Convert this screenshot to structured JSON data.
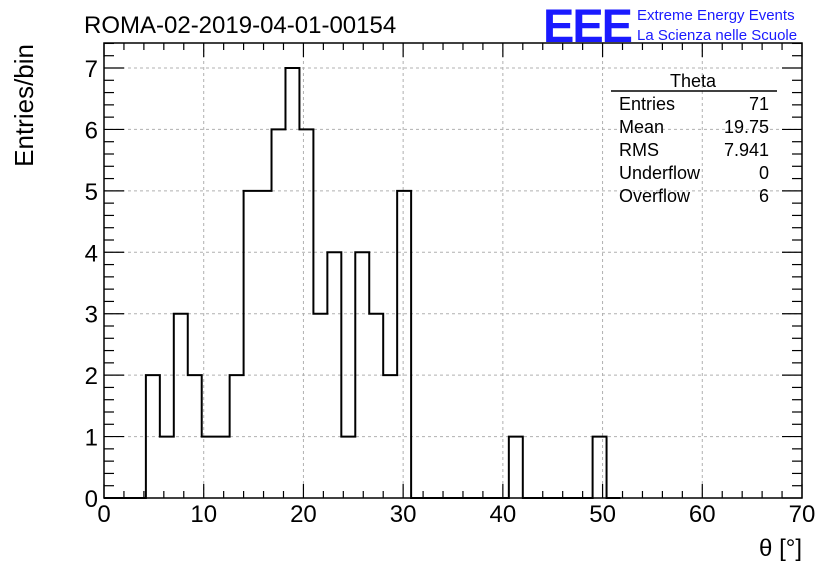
{
  "run_title": "ROMA-02-2019-04-01-00154",
  "logo": {
    "mark": "EEE",
    "line1": "Extreme Energy Events",
    "line2": "La Scienza nelle Scuole",
    "color": "#1a1aff"
  },
  "stats_box": {
    "title": "Theta",
    "rows": [
      {
        "label": "Entries",
        "value": "71"
      },
      {
        "label": "Mean",
        "value": "19.75"
      },
      {
        "label": "RMS",
        "value": "7.941"
      },
      {
        "label": "Underflow",
        "value": "0"
      },
      {
        "label": "Overflow",
        "value": "6"
      }
    ]
  },
  "chart_data": {
    "type": "bar",
    "histogram": true,
    "title": "ROMA-02-2019-04-01-00154",
    "xlabel": "θ [°]",
    "ylabel": "Entries/bin",
    "xlim": [
      0,
      70
    ],
    "ylim": [
      0,
      7.4
    ],
    "bin_width": 1.4,
    "x_ticks": [
      "0",
      "10",
      "20",
      "30",
      "40",
      "50",
      "60",
      "70"
    ],
    "y_ticks": [
      "0",
      "1",
      "2",
      "3",
      "4",
      "5",
      "6",
      "7"
    ],
    "grid": true,
    "bins": [
      {
        "x0": 0.0,
        "x1": 1.4,
        "count": 0
      },
      {
        "x0": 1.4,
        "x1": 2.8,
        "count": 0
      },
      {
        "x0": 2.8,
        "x1": 4.2,
        "count": 0
      },
      {
        "x0": 4.2,
        "x1": 5.6,
        "count": 2
      },
      {
        "x0": 5.6,
        "x1": 7.0,
        "count": 1
      },
      {
        "x0": 7.0,
        "x1": 8.4,
        "count": 3
      },
      {
        "x0": 8.4,
        "x1": 9.8,
        "count": 2
      },
      {
        "x0": 9.8,
        "x1": 11.2,
        "count": 1
      },
      {
        "x0": 11.2,
        "x1": 12.6,
        "count": 1
      },
      {
        "x0": 12.6,
        "x1": 14.0,
        "count": 2
      },
      {
        "x0": 14.0,
        "x1": 15.4,
        "count": 5
      },
      {
        "x0": 15.4,
        "x1": 16.8,
        "count": 5
      },
      {
        "x0": 16.8,
        "x1": 18.2,
        "count": 6
      },
      {
        "x0": 18.2,
        "x1": 19.6,
        "count": 7
      },
      {
        "x0": 19.6,
        "x1": 21.0,
        "count": 6
      },
      {
        "x0": 21.0,
        "x1": 22.4,
        "count": 3
      },
      {
        "x0": 22.4,
        "x1": 23.8,
        "count": 4
      },
      {
        "x0": 23.8,
        "x1": 25.2,
        "count": 1
      },
      {
        "x0": 25.2,
        "x1": 26.6,
        "count": 4
      },
      {
        "x0": 26.6,
        "x1": 28.0,
        "count": 3
      },
      {
        "x0": 28.0,
        "x1": 29.4,
        "count": 2
      },
      {
        "x0": 29.4,
        "x1": 30.8,
        "count": 5
      },
      {
        "x0": 30.8,
        "x1": 32.2,
        "count": 0
      },
      {
        "x0": 32.2,
        "x1": 33.6,
        "count": 0
      },
      {
        "x0": 33.6,
        "x1": 35.0,
        "count": 0
      },
      {
        "x0": 35.0,
        "x1": 36.4,
        "count": 0
      },
      {
        "x0": 36.4,
        "x1": 37.8,
        "count": 0
      },
      {
        "x0": 37.8,
        "x1": 39.2,
        "count": 0
      },
      {
        "x0": 39.2,
        "x1": 40.6,
        "count": 0
      },
      {
        "x0": 40.6,
        "x1": 42.0,
        "count": 1
      },
      {
        "x0": 42.0,
        "x1": 43.4,
        "count": 0
      },
      {
        "x0": 43.4,
        "x1": 44.8,
        "count": 0
      },
      {
        "x0": 44.8,
        "x1": 46.2,
        "count": 0
      },
      {
        "x0": 46.2,
        "x1": 47.6,
        "count": 0
      },
      {
        "x0": 47.6,
        "x1": 49.0,
        "count": 0
      },
      {
        "x0": 49.0,
        "x1": 50.4,
        "count": 1
      },
      {
        "x0": 50.4,
        "x1": 51.8,
        "count": 0
      }
    ]
  }
}
